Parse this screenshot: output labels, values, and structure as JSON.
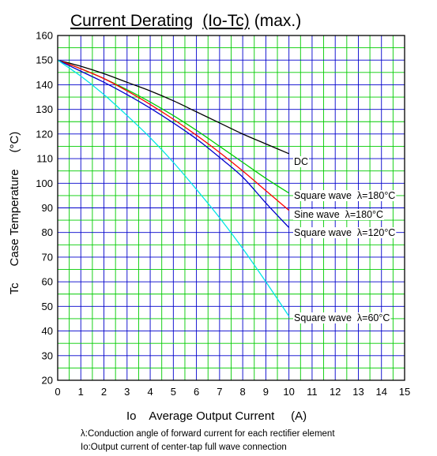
{
  "chart_data": {
    "type": "line",
    "title_main": "Current Derating",
    "title_paren": "(Io-Tc)",
    "title_suffix": "(max.)",
    "xlabel": "Io    Average Output Current     (A)",
    "ylabel": "Tc     Case Temperature     (°C)",
    "xlim": [
      0,
      15
    ],
    "ylim": [
      20,
      160
    ],
    "xticks": [
      0,
      1,
      2,
      3,
      4,
      5,
      6,
      7,
      8,
      9,
      10,
      11,
      12,
      13,
      14,
      15
    ],
    "yticks": [
      20,
      30,
      40,
      50,
      60,
      70,
      80,
      90,
      100,
      110,
      120,
      130,
      140,
      150,
      160
    ],
    "grid": true,
    "grid_colors": {
      "major": "#0000cc",
      "minor": "#00cc00"
    },
    "series": [
      {
        "name": "DC",
        "color": "#000000",
        "x": [
          0,
          1,
          2,
          3,
          4,
          5,
          6,
          7,
          8,
          9,
          10
        ],
        "y": [
          150,
          147.5,
          144.5,
          141,
          137.5,
          133.5,
          129,
          124.5,
          120,
          116,
          112
        ]
      },
      {
        "name": "Square wave  λ=180°C",
        "color": "#00cc00",
        "x": [
          0,
          1,
          2,
          3,
          4,
          5,
          6,
          7,
          8,
          9,
          10
        ],
        "y": [
          150,
          146.5,
          142.5,
          138,
          133,
          127.5,
          121.5,
          115,
          108.5,
          102,
          96
        ]
      },
      {
        "name": "Sine wave  λ=180°C",
        "color": "#ff0000",
        "x": [
          0,
          1,
          2,
          3,
          4,
          5,
          6,
          7,
          8,
          9,
          10
        ],
        "y": [
          150,
          146.5,
          142.5,
          137.5,
          132,
          126,
          119.5,
          112.5,
          105,
          97,
          89
        ]
      },
      {
        "name": "Square wave  λ=120°C",
        "color": "#0000cc",
        "x": [
          0,
          1,
          2,
          3,
          4,
          5,
          6,
          7,
          8,
          9,
          10
        ],
        "y": [
          150,
          145.5,
          141,
          136,
          130.5,
          124.5,
          118,
          110.5,
          102.5,
          92,
          82
        ]
      },
      {
        "name": "Square wave  λ=60°C",
        "color": "#00e5e5",
        "x": [
          0,
          1,
          2,
          3,
          4,
          5,
          6,
          7,
          8,
          9,
          10
        ],
        "y": [
          150,
          143.5,
          136,
          127.5,
          118.5,
          108.5,
          97.5,
          86,
          73.5,
          60,
          46
        ]
      }
    ],
    "notes": [
      "λ:Conduction angle of forward current for each rectifier element",
      "Io:Output current of center-tap full wave connection"
    ]
  }
}
